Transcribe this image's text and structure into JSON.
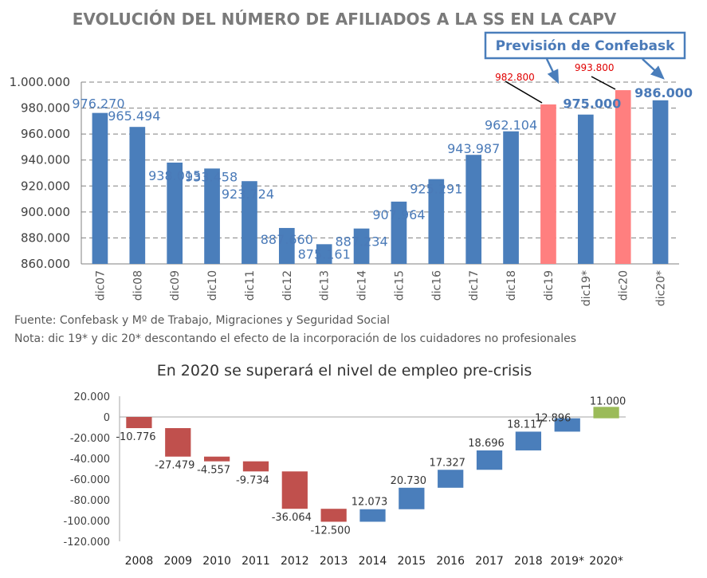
{
  "chart_data": [
    {
      "type": "bar",
      "title": "EVOLUCIÓN DEL NÚMERO DE AFILIADOS A LA SS EN LA CAPV",
      "categories": [
        "dic07",
        "dic08",
        "dic09",
        "dic10",
        "dic11",
        "dic12",
        "dic13",
        "dic14",
        "dic15",
        "dic16",
        "dic17",
        "dic18",
        "dic19",
        "dic19*",
        "dic20",
        "dic20*"
      ],
      "values": [
        976270,
        965494,
        938015,
        933458,
        923724,
        887660,
        875161,
        887234,
        907964,
        925291,
        943987,
        962104,
        982800,
        975000,
        993800,
        986000
      ],
      "labels": [
        "976.270",
        "965.494",
        "938.015",
        "933.458",
        "923.724",
        "887.660",
        "875.161",
        "887.234",
        "907.964",
        "925.291",
        "943.987",
        "962.104",
        "982.800",
        "975.000",
        "993.800",
        "986.000"
      ],
      "colors": [
        "#4a7ebb",
        "#4a7ebb",
        "#4a7ebb",
        "#4a7ebb",
        "#4a7ebb",
        "#4a7ebb",
        "#4a7ebb",
        "#4a7ebb",
        "#4a7ebb",
        "#4a7ebb",
        "#4a7ebb",
        "#4a7ebb",
        "#ff7f7f",
        "#4a7ebb",
        "#ff7f7f",
        "#4a7ebb"
      ],
      "ylim": [
        860000,
        1000000
      ],
      "yticks": [
        "860.000",
        "880.000",
        "900.000",
        "920.000",
        "940.000",
        "960.000",
        "980.000",
        "1.000.000"
      ],
      "grid": true,
      "annotation": "Previsión de Confebask"
    },
    {
      "type": "bar",
      "subtype": "waterfall",
      "title": "En 2020 se superará el nivel de empleo pre-crisis",
      "categories": [
        "2008",
        "2009",
        "2010",
        "2011",
        "2012",
        "2013",
        "2014",
        "2015",
        "2016",
        "2017",
        "2018",
        "2019*",
        "2020*"
      ],
      "values": [
        -10776,
        -27479,
        -4557,
        -9734,
        -36064,
        -12500,
        12073,
        20730,
        17327,
        18696,
        18117,
        12896,
        11000
      ],
      "labels": [
        "-10.776",
        "-27.479",
        "-4.557",
        "-9.734",
        "-36.064",
        "-12.500",
        "12.073",
        "20.730",
        "17.327",
        "18.696",
        "18.117",
        "12.896",
        "11.000"
      ],
      "colors": [
        "#c0504d",
        "#c0504d",
        "#c0504d",
        "#c0504d",
        "#c0504d",
        "#c0504d",
        "#4a7ebb",
        "#4a7ebb",
        "#4a7ebb",
        "#4a7ebb",
        "#4a7ebb",
        "#4a7ebb",
        "#9bbb59"
      ],
      "ylim": [
        -120000,
        20000
      ],
      "yticks": [
        "-120.000",
        "-100.000",
        "-80.000",
        "-60.000",
        "-40.000",
        "-20.000",
        "0",
        "20.000"
      ],
      "grid": false
    }
  ],
  "notes": {
    "source": "Fuente: Confebask y Mº de Trabajo, Migraciones y Seguridad Social",
    "note": "Nota: dic 19* y dic 20* descontando el efecto de la incorporación de los cuidadores no profesionales"
  }
}
